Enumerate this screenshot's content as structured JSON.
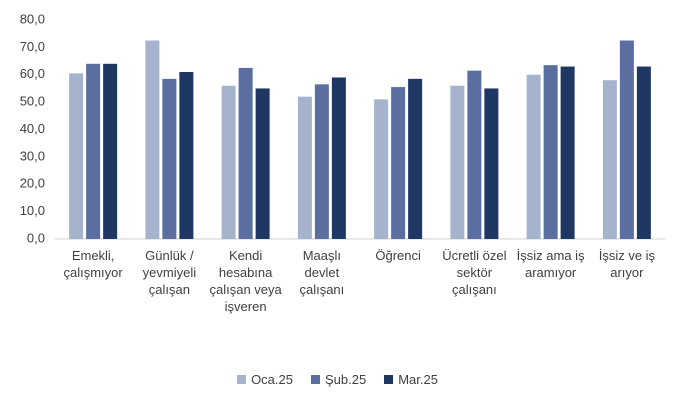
{
  "chart_data": {
    "type": "bar",
    "categories": [
      "Emekli, çalışmıyor",
      "Günlük / yevmiyeli çalışan",
      "Kendi hesabına çalışan veya işveren",
      "Maaşlı devlet çalışanı",
      "Öğrenci",
      "Ücretli özel sektör çalışanı",
      "İşsiz ama iş aramıyor",
      "İşsiz ve iş arıyor"
    ],
    "series": [
      {
        "name": "Oca.25",
        "color": "#a5b3cd",
        "values": [
          60.5,
          72.5,
          56,
          52,
          51,
          56,
          60,
          58
        ]
      },
      {
        "name": "Şub.25",
        "color": "#5b6ea0",
        "values": [
          64,
          58.5,
          62.5,
          56.5,
          55.5,
          61.5,
          63.5,
          72.5
        ]
      },
      {
        "name": "Mar.25",
        "color": "#1f3763",
        "values": [
          64,
          61,
          55,
          59,
          58.5,
          55,
          63,
          63
        ]
      }
    ],
    "ylim": [
      0,
      80
    ],
    "yticks": [
      {
        "value": 0,
        "label": "0,0"
      },
      {
        "value": 10,
        "label": "10,0"
      },
      {
        "value": 20,
        "label": "20,0"
      },
      {
        "value": 30,
        "label": "30,0"
      },
      {
        "value": 40,
        "label": "40,0"
      },
      {
        "value": 50,
        "label": "50,0"
      },
      {
        "value": 60,
        "label": "60,0"
      },
      {
        "value": 70,
        "label": "70,0"
      },
      {
        "value": 80,
        "label": "80,0"
      }
    ],
    "grid": false,
    "legend": "bottom"
  }
}
